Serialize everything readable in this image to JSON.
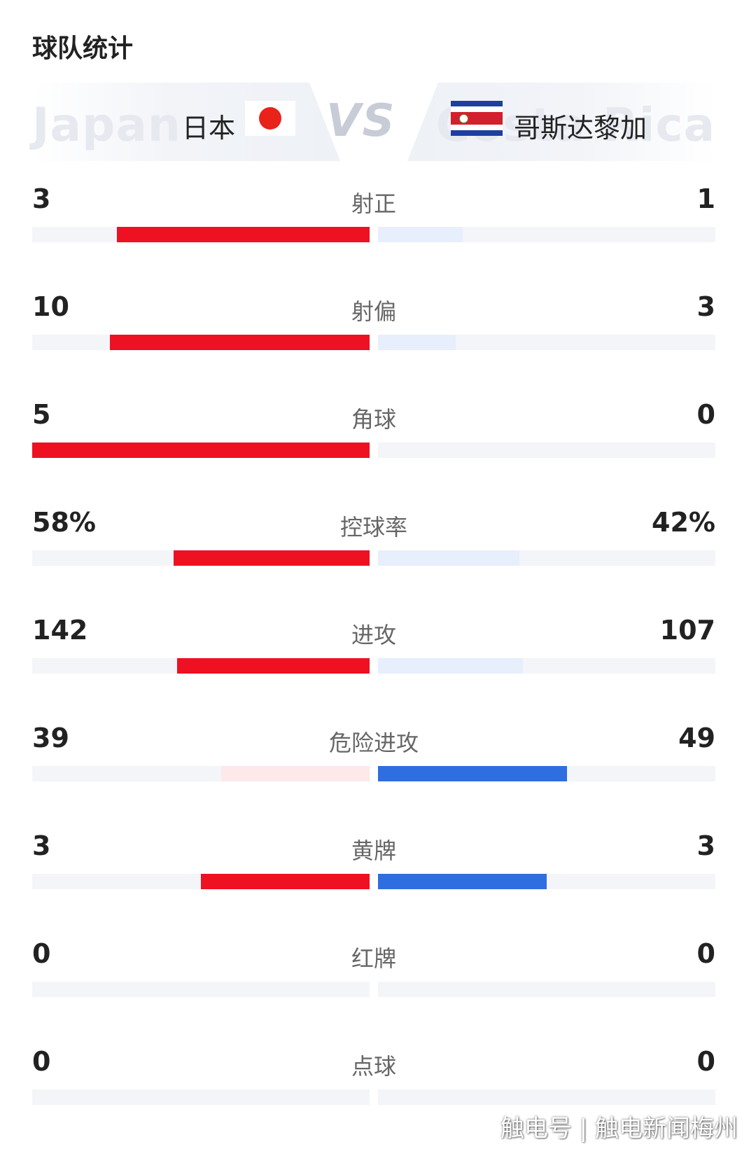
{
  "title": "球队统计",
  "teams": {
    "home": {
      "name": "日本",
      "ghost": "Japan"
    },
    "vs": "VS",
    "away": {
      "name": "哥斯达黎加",
      "ghost": "Costa Rica"
    }
  },
  "colors": {
    "home_strong": "#ee1122",
    "home_light": "#fde8ea",
    "away_strong": "#2f6ee0",
    "away_light": "#e7eefc",
    "track": "#f4f5f8"
  },
  "stats": [
    {
      "label": "射正",
      "home": "3",
      "away": "1",
      "home_ratio": 0.75,
      "away_ratio": 0.25,
      "leader": "home"
    },
    {
      "label": "射偏",
      "home": "10",
      "away": "3",
      "home_ratio": 0.77,
      "away_ratio": 0.23,
      "leader": "home"
    },
    {
      "label": "角球",
      "home": "5",
      "away": "0",
      "home_ratio": 1.0,
      "away_ratio": 0.0,
      "leader": "home"
    },
    {
      "label": "控球率",
      "home": "58%",
      "away": "42%",
      "home_ratio": 0.58,
      "away_ratio": 0.42,
      "leader": "home"
    },
    {
      "label": "进攻",
      "home": "142",
      "away": "107",
      "home_ratio": 0.57,
      "away_ratio": 0.43,
      "leader": "home"
    },
    {
      "label": "危险进攻",
      "home": "39",
      "away": "49",
      "home_ratio": 0.44,
      "away_ratio": 0.56,
      "leader": "away"
    },
    {
      "label": "黄牌",
      "home": "3",
      "away": "3",
      "home_ratio": 0.5,
      "away_ratio": 0.5,
      "leader": "both"
    },
    {
      "label": "红牌",
      "home": "0",
      "away": "0",
      "home_ratio": 0.0,
      "away_ratio": 0.0,
      "leader": "none"
    },
    {
      "label": "点球",
      "home": "0",
      "away": "0",
      "home_ratio": 0.0,
      "away_ratio": 0.0,
      "leader": "none"
    }
  ],
  "watermark": "触电号 | 触电新闻梅州"
}
